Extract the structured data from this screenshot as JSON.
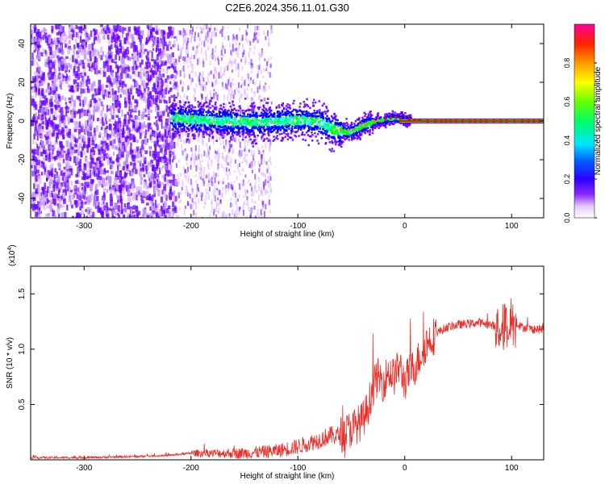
{
  "title": "C2E6.2024.356.11.01.G30",
  "chart_data": [
    {
      "type": "heatmap",
      "xlabel": "Height of straight line (km)",
      "ylabel": "Frequency (Hz)",
      "xlim": [
        -350,
        130
      ],
      "ylim": [
        -50,
        50
      ],
      "xticks": [
        -300,
        -200,
        -100,
        0,
        100
      ],
      "yticks": [
        -40,
        -20,
        0,
        20,
        40
      ],
      "colorbar": {
        "label": "Normalized spectral amplitude",
        "range": [
          0,
          1
        ],
        "ticks": [
          "0.0",
          "0.2",
          "0.4",
          "0.6",
          "0.8"
        ],
        "colors": [
          "#ffffff",
          "#d9b3ff",
          "#6a00ff",
          "#0000ff",
          "#00ffff",
          "#00ff00",
          "#ffff00",
          "#ff8000",
          "#ff0000",
          "#ff00a0"
        ]
      },
      "signal_center_hz": [
        [
          -220,
          2
        ],
        [
          -190,
          1
        ],
        [
          -160,
          0
        ],
        [
          -130,
          0
        ],
        [
          -100,
          1
        ],
        [
          -80,
          0
        ],
        [
          -70,
          -3
        ],
        [
          -60,
          -5
        ],
        [
          -50,
          -5
        ],
        [
          -40,
          -2
        ],
        [
          -30,
          0
        ],
        [
          -20,
          1
        ],
        [
          -10,
          2
        ],
        [
          0,
          1
        ],
        [
          20,
          0
        ],
        [
          50,
          0
        ],
        [
          80,
          0
        ],
        [
          100,
          0
        ],
        [
          130,
          0
        ]
      ],
      "colorscale_max_region_km": [
        0,
        130
      ]
    },
    {
      "type": "line",
      "xlabel": "Height of straight line (km)",
      "ylabel": "SNR (10 * v/v)",
      "y_multiplier": "(x10",
      "y_multiplier_exp": "4",
      "y_multiplier_close": ")",
      "xlim": [
        -350,
        130
      ],
      "ylim": [
        0,
        1.75
      ],
      "xticks": [
        -300,
        -200,
        -100,
        0,
        100
      ],
      "yticks": [
        "0.5",
        "1.0",
        "1.5"
      ],
      "line_color": "#e8302a",
      "x": [
        -350,
        -300,
        -250,
        -220,
        -200,
        -180,
        -150,
        -120,
        -100,
        -90,
        -80,
        -70,
        -60,
        -50,
        -40,
        -35,
        -30,
        -25,
        -20,
        -15,
        -10,
        -5,
        0,
        5,
        10,
        15,
        20,
        25,
        30,
        40,
        50,
        60,
        70,
        80,
        90,
        95,
        100,
        110,
        120,
        130
      ],
      "values": [
        0.02,
        0.02,
        0.03,
        0.04,
        0.06,
        0.06,
        0.06,
        0.08,
        0.12,
        0.15,
        0.18,
        0.22,
        0.22,
        0.28,
        0.35,
        0.45,
        0.65,
        0.75,
        0.7,
        0.8,
        0.75,
        0.85,
        0.7,
        0.8,
        0.85,
        0.95,
        1.05,
        1.1,
        1.15,
        1.2,
        1.22,
        1.23,
        1.24,
        1.22,
        1.2,
        1.2,
        1.25,
        1.2,
        1.18,
        1.18
      ]
    }
  ]
}
